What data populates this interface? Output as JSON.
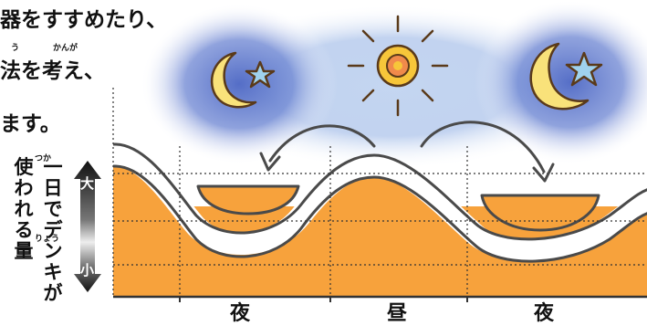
{
  "intro_text": {
    "line1": "器をすすめたり、",
    "line2": "法を考え、",
    "line3": "ます。",
    "ruby_line2_a": "う",
    "ruby_line2_b": "かんが"
  },
  "vertical_label": {
    "col1": "一日でデンキが",
    "col2": "使われる量",
    "ruby_tsuka": "つか",
    "ruby_ryou": "りょう"
  },
  "scale": {
    "high": "大",
    "low": "小"
  },
  "periods": [
    "夜",
    "昼",
    "夜"
  ],
  "icons": [
    "moon-star-icon",
    "sun-icon",
    "moon-star-icon"
  ],
  "colors": {
    "demand_fill": "#f7a23c",
    "base_fill": "#fde79a",
    "night_glow": "#5a73c9",
    "day_glow": "#aec6ea",
    "sun": "#f7c63a",
    "moon": "#f9e27a",
    "star": "#9fd2ee"
  }
}
